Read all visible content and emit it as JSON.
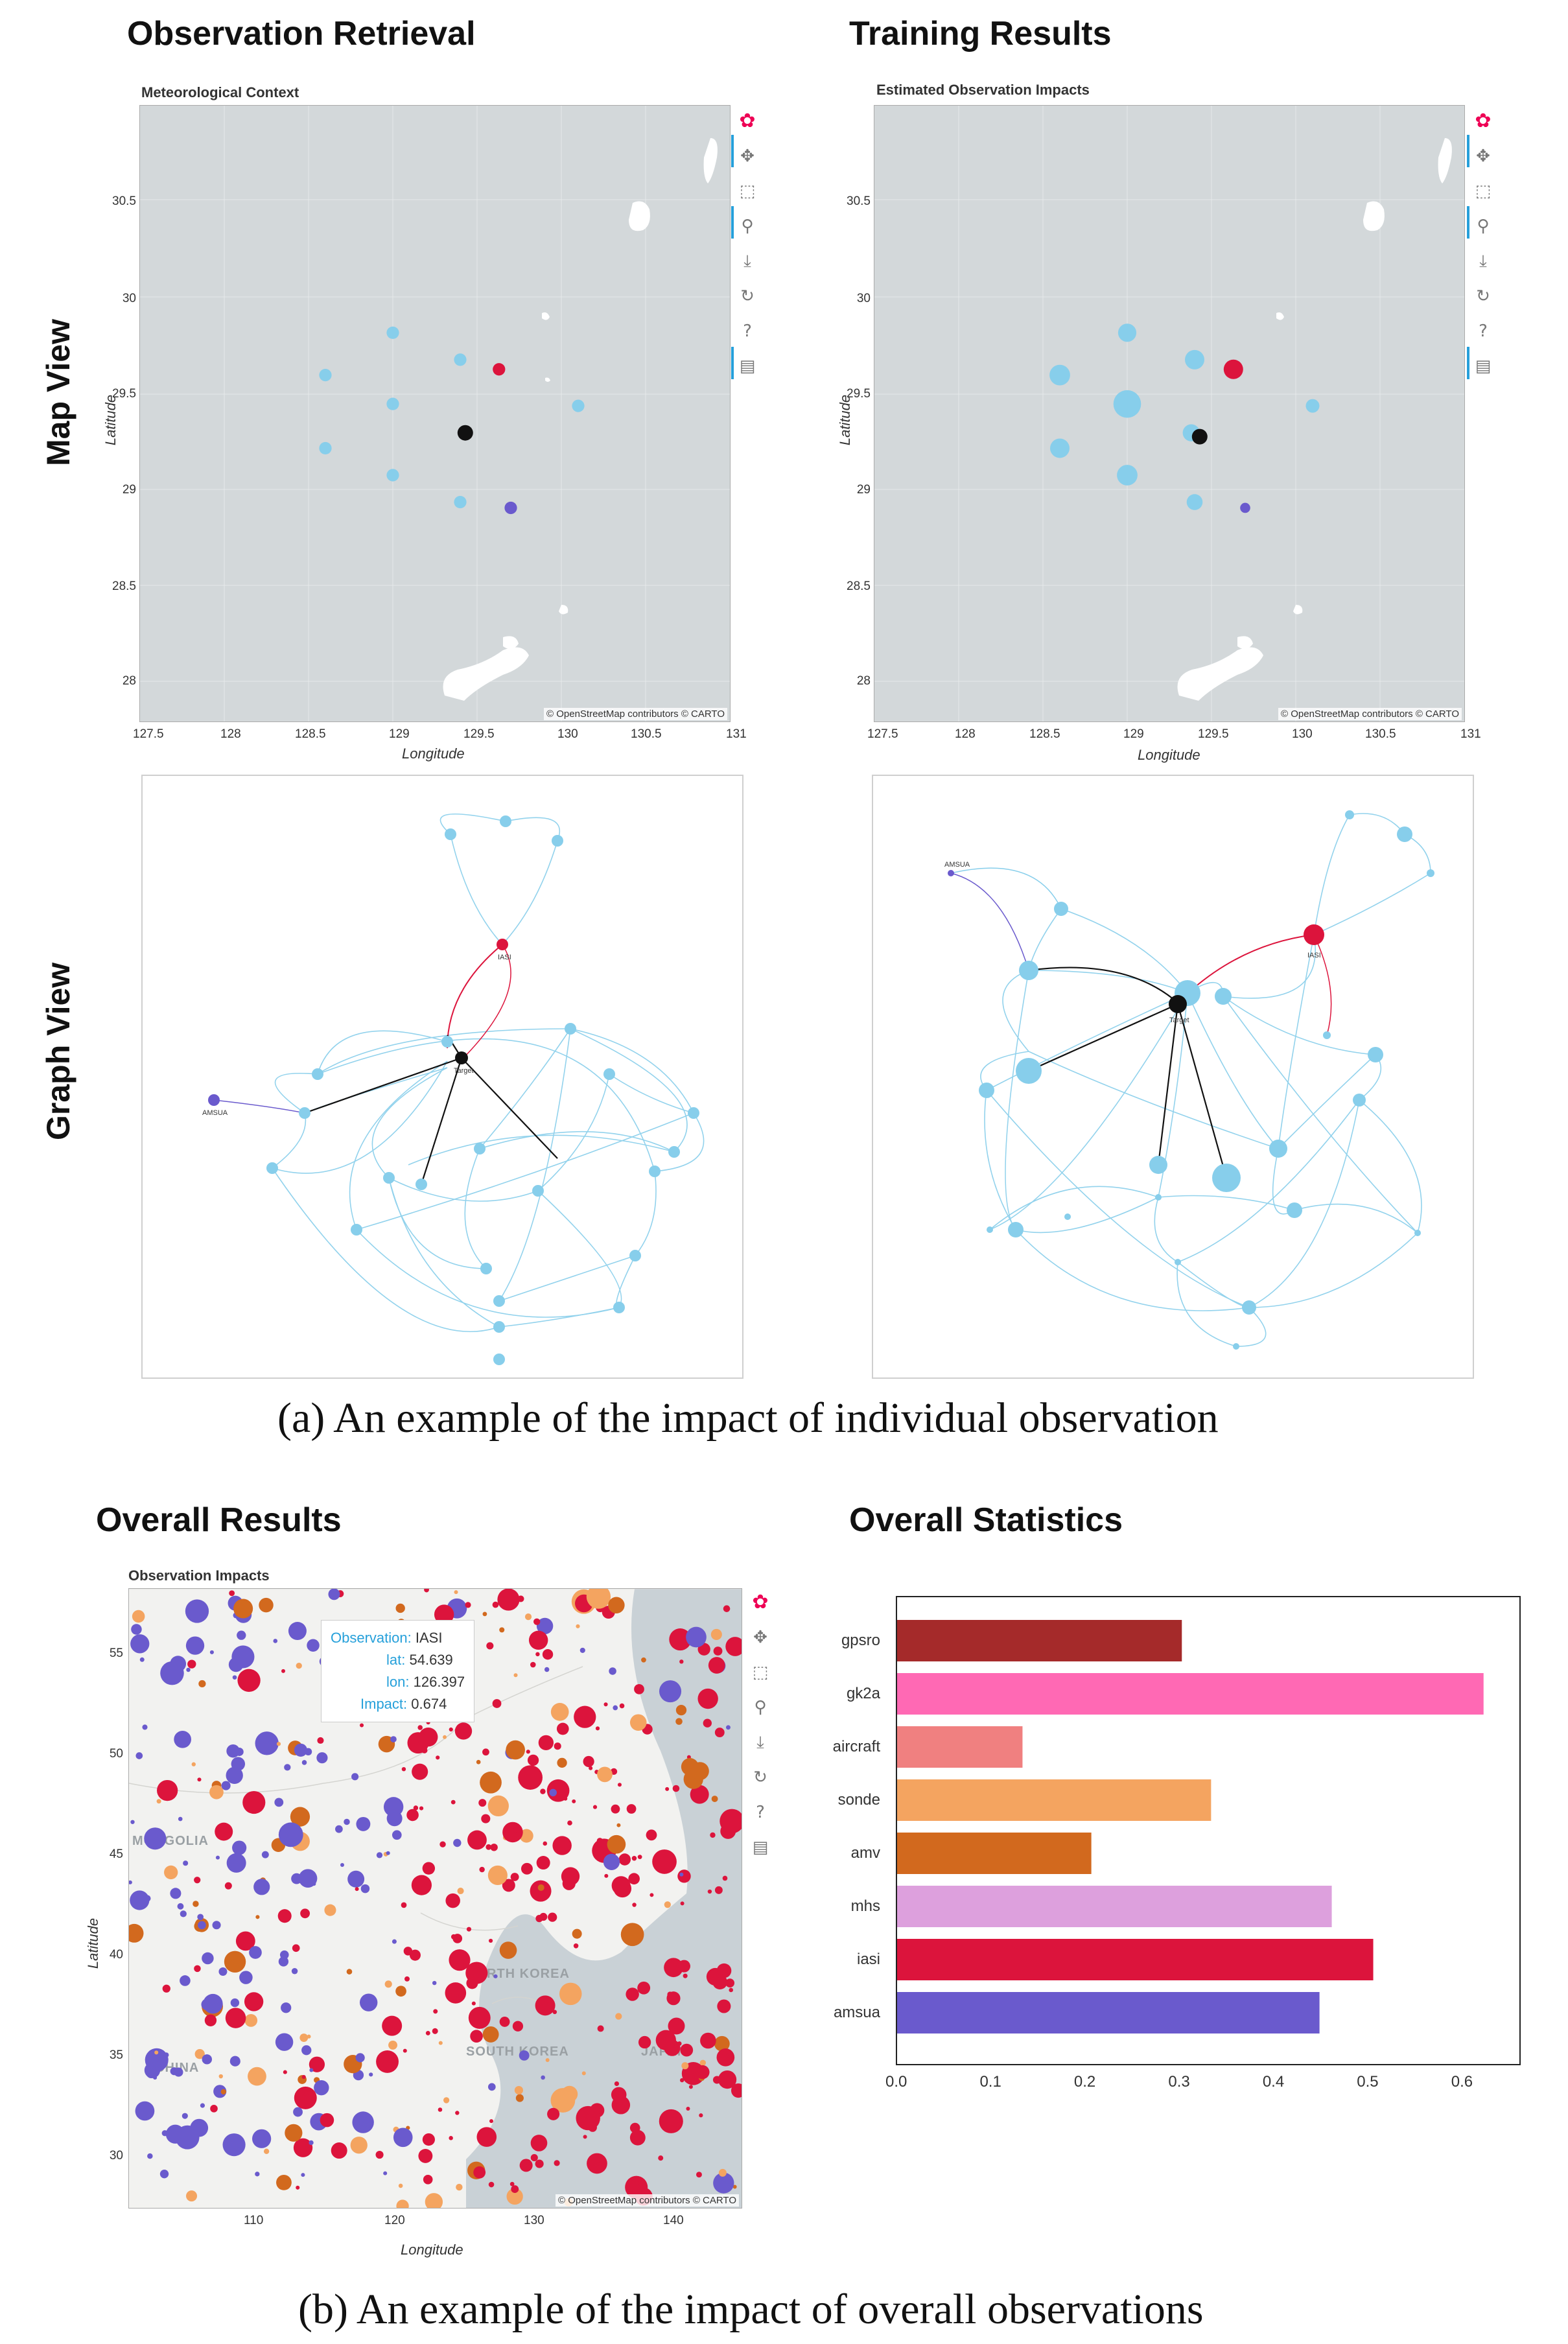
{
  "titles": {
    "observation_retrieval": "Observation Retrieval",
    "training_results": "Training Results",
    "map_view": "Map View",
    "graph_view": "Graph View",
    "overall_results": "Overall Results",
    "overall_statistics": "Overall Statistics"
  },
  "panels": {
    "meteorological_context": "Meteorological Context",
    "estimated_observation_impacts": "Estimated Observation Impacts",
    "observation_impacts": "Observation Impacts"
  },
  "captions": {
    "a": "(a) An example of the impact of individual observation",
    "b": "(b) An example of the impact of overall observations"
  },
  "maps": {
    "x_label": "Longitude",
    "y_label": "Latitude",
    "x_ticks": [
      "127.5",
      "128",
      "128.5",
      "129",
      "129.5",
      "130",
      "130.5",
      "131"
    ],
    "y_ticks": [
      "30.5",
      "30",
      "29.5",
      "29",
      "28.5",
      "28"
    ],
    "overall_x_ticks": [
      "110",
      "120",
      "130",
      "140"
    ],
    "overall_y_ticks": [
      "55",
      "50",
      "45",
      "40",
      "35",
      "30"
    ],
    "attribution": "© OpenStreetMap contributors © CARTO",
    "countries": [
      "MONGOLIA",
      "CHINA",
      "NORTH KOREA",
      "SOUTH KOREA",
      "JAPAN"
    ]
  },
  "graph_labels": {
    "target": "Target",
    "iasi": "IASI",
    "amsua": "AMSUA"
  },
  "tooltip": {
    "observation_key": "Observation:",
    "observation_val": "IASI",
    "lat_key": "lat:",
    "lat_val": "54.639",
    "lon_key": "lon:",
    "lon_val": "126.397",
    "impact_key": "Impact:",
    "impact_val": "0.674"
  },
  "colors": {
    "sky": "#87ceeb",
    "red": "#dc143c",
    "purple": "#6a5acd",
    "target": "#111111",
    "land": "#d3d8da"
  },
  "chart_data": [
    {
      "type": "scatter",
      "title": "Meteorological Context",
      "xlabel": "Longitude",
      "ylabel": "Latitude",
      "xlim": [
        127.5,
        131
      ],
      "ylim": [
        27.8,
        31.0
      ],
      "points": [
        {
          "lon": 129.0,
          "lat": 29.82,
          "type": "other",
          "impact": 0.2
        },
        {
          "lon": 128.6,
          "lat": 29.6,
          "type": "other",
          "impact": 0.2
        },
        {
          "lon": 129.4,
          "lat": 29.68,
          "type": "other",
          "impact": 0.2
        },
        {
          "lon": 129.63,
          "lat": 29.63,
          "type": "iasi",
          "impact": 0.2
        },
        {
          "lon": 129.0,
          "lat": 29.45,
          "type": "other",
          "impact": 0.2
        },
        {
          "lon": 130.1,
          "lat": 29.44,
          "type": "other",
          "impact": 0.2
        },
        {
          "lon": 128.6,
          "lat": 29.22,
          "type": "other",
          "impact": 0.2
        },
        {
          "lon": 129.43,
          "lat": 29.3,
          "type": "target",
          "impact": 0.3
        },
        {
          "lon": 129.0,
          "lat": 29.08,
          "type": "other",
          "impact": 0.2
        },
        {
          "lon": 129.4,
          "lat": 28.94,
          "type": "other",
          "impact": 0.2
        },
        {
          "lon": 129.7,
          "lat": 28.91,
          "type": "amsua",
          "impact": 0.2
        }
      ]
    },
    {
      "type": "scatter",
      "title": "Estimated Observation Impacts",
      "xlabel": "Longitude",
      "ylabel": "Latitude",
      "xlim": [
        127.5,
        131
      ],
      "ylim": [
        27.8,
        31.0
      ],
      "points": [
        {
          "lon": 129.0,
          "lat": 29.82,
          "type": "other",
          "impact": 0.45
        },
        {
          "lon": 128.6,
          "lat": 29.6,
          "type": "other",
          "impact": 0.55
        },
        {
          "lon": 129.4,
          "lat": 29.68,
          "type": "other",
          "impact": 0.5
        },
        {
          "lon": 129.63,
          "lat": 29.63,
          "type": "iasi",
          "impact": 0.5
        },
        {
          "lon": 129.0,
          "lat": 29.45,
          "type": "other",
          "impact": 0.85
        },
        {
          "lon": 130.1,
          "lat": 29.44,
          "type": "other",
          "impact": 0.25
        },
        {
          "lon": 128.6,
          "lat": 29.22,
          "type": "other",
          "impact": 0.5
        },
        {
          "lon": 129.38,
          "lat": 29.3,
          "type": "other",
          "impact": 0.4
        },
        {
          "lon": 129.43,
          "lat": 29.28,
          "type": "target",
          "impact": 0.4
        },
        {
          "lon": 129.0,
          "lat": 29.08,
          "type": "other",
          "impact": 0.55
        },
        {
          "lon": 129.4,
          "lat": 28.94,
          "type": "other",
          "impact": 0.35
        },
        {
          "lon": 129.7,
          "lat": 28.91,
          "type": "amsua",
          "impact": 0.1
        }
      ]
    },
    {
      "type": "bar",
      "title": "Overall Statistics",
      "orientation": "horizontal",
      "categories": [
        "gpsro",
        "gk2a",
        "aircraft",
        "sonde",
        "amv",
        "mhs",
        "iasi",
        "amsua"
      ],
      "values": [
        0.302,
        0.622,
        0.133,
        0.333,
        0.206,
        0.461,
        0.505,
        0.448
      ],
      "colors": [
        "#a52a2a",
        "#ff69b4",
        "#f08080",
        "#f4a460",
        "#d2691e",
        "#dda0dd",
        "#dc143c",
        "#6a5acd"
      ],
      "xlim": [
        0,
        0.66
      ],
      "x_ticks": [
        "0.0",
        "0.1",
        "0.2",
        "0.3",
        "0.4",
        "0.5",
        "0.6"
      ]
    }
  ]
}
